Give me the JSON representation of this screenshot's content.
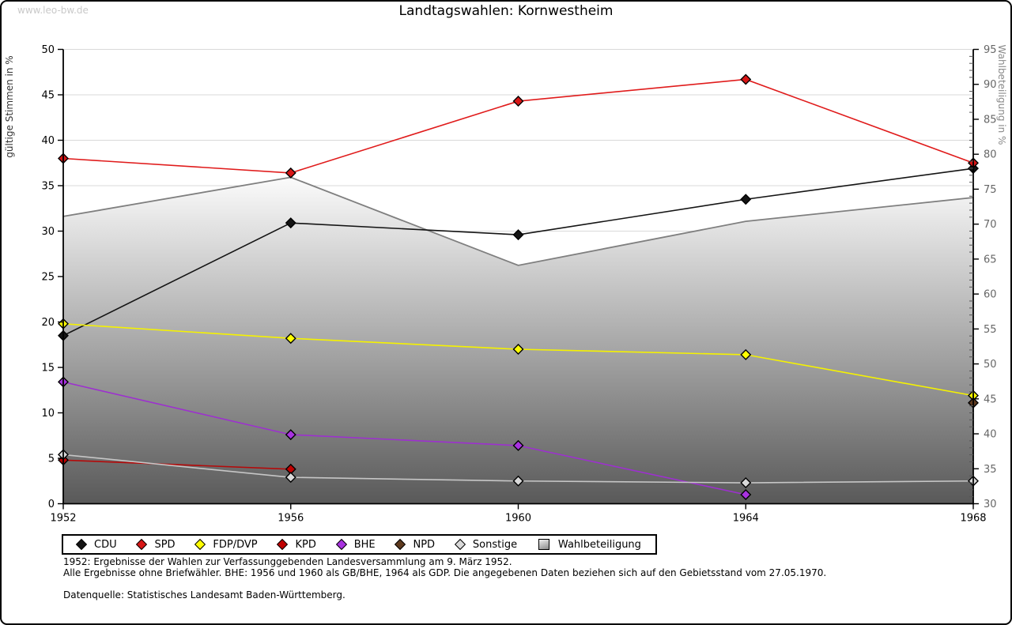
{
  "watermark": "www.leo-bw.de",
  "title": "Landtagswahlen: Kornwestheim",
  "notes": [
    "1952: Ergebnisse der Wahlen zur Verfassunggebenden Landesversammlung am 9. März 1952.",
    "Alle Ergebnisse ohne Briefwähler. BHE: 1956 und 1960 als GB/BHE, 1964 als GDP. Die angegebenen Daten beziehen sich auf den Gebietsstand vom 27.05.1970."
  ],
  "source": "Datenquelle: Statistisches Landesamt Baden-Württemberg.",
  "chart_data": {
    "type": "line",
    "title": "Landtagswahlen: Kornwestheim",
    "x": [
      1952,
      1956,
      1960,
      1964,
      1968
    ],
    "left_axis": {
      "label": "gültige Stimmen in %",
      "min": 0,
      "max": 50,
      "tick_step": 5
    },
    "right_axis": {
      "label": "Wahlbeteiligung in %",
      "min": 30,
      "max": 95,
      "tick_step": 5,
      "minor_tick_step": 1
    },
    "grid": "horizontal-only",
    "legend_position": "bottom",
    "colors": {
      "grid": "#d9d9d9",
      "axis": "#000000",
      "right_tick_text": "#666666"
    },
    "series": [
      {
        "name": "CDU",
        "color": "#141414",
        "marker_color": "#141414",
        "values": [
          18.5,
          30.9,
          29.6,
          33.5,
          36.9
        ]
      },
      {
        "name": "SPD",
        "color": "#e01b1b",
        "marker_color": "#d81616",
        "values": [
          38.0,
          36.4,
          44.3,
          46.7,
          37.5
        ]
      },
      {
        "name": "FDP/DVP",
        "color": "#f5f200",
        "marker_color": "#ffff00",
        "values": [
          19.8,
          18.2,
          17.0,
          16.4,
          11.9
        ]
      },
      {
        "name": "KPD",
        "color": "#b40a0a",
        "marker_color": "#c00000",
        "values": [
          4.8,
          3.8,
          null,
          null,
          null
        ]
      },
      {
        "name": "BHE",
        "color": "#9d30cf",
        "marker_color": "#a832e0",
        "values": [
          13.4,
          7.6,
          6.4,
          1.0,
          null
        ]
      },
      {
        "name": "NPD",
        "color": "#5e3a1e",
        "marker_color": "#5e3a1e",
        "values": [
          null,
          null,
          null,
          null,
          11.1
        ]
      },
      {
        "name": "Sonstige",
        "color": "#c6c6c6",
        "marker_color": "#d9d9d9",
        "values": [
          5.4,
          2.9,
          2.5,
          2.3,
          2.5
        ]
      }
    ],
    "area_series": {
      "name": "Wahlbeteiligung",
      "axis": "right",
      "stroke": "#7f7f7f",
      "fill_top": "#fbfbfb",
      "fill_bottom": "#595959",
      "values": [
        71.1,
        76.7,
        64.1,
        70.4,
        73.8
      ]
    }
  }
}
